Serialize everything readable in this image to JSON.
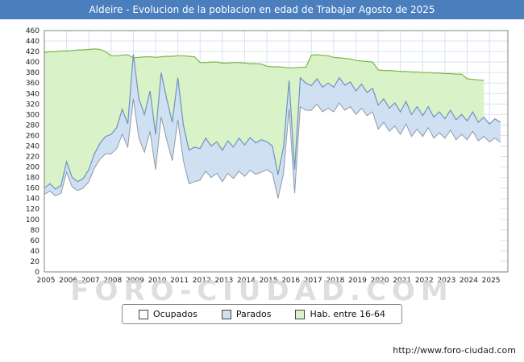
{
  "header": {
    "title": "Aldeire - Evolucion de la poblacion en edad de Trabajar Agosto de 2025",
    "bg_color": "#4a7ebd"
  },
  "watermark": "FORO-CIUDAD.COM",
  "footer": {
    "url": "http://www.foro-ciudad.com"
  },
  "legend": [
    {
      "label": "Ocupados",
      "color": "#ffffff"
    },
    {
      "label": "Parados",
      "color": "#cfe0f2"
    },
    {
      "label": "Hab. entre 16-64",
      "color": "#d9f2c8"
    }
  ],
  "chart_data": {
    "type": "area",
    "title": "Aldeire - Evolucion de la poblacion en edad de Trabajar Agosto de 2025",
    "xlabel": "",
    "ylabel": "",
    "ylim": [
      0,
      460
    ],
    "ytick_step": 20,
    "xlim": [
      2005,
      2025.83
    ],
    "xticks": [
      2005,
      2006,
      2007,
      2008,
      2009,
      2010,
      2011,
      2012,
      2013,
      2014,
      2015,
      2016,
      2017,
      2018,
      2019,
      2020,
      2021,
      2022,
      2023,
      2024,
      2025
    ],
    "grid": true,
    "legend_position": "bottom",
    "grid_color": "#d9e2f0",
    "border_color": "#808080",
    "x": [
      2005,
      2005.25,
      2005.5,
      2005.75,
      2006,
      2006.25,
      2006.5,
      2006.75,
      2007,
      2007.25,
      2007.5,
      2007.75,
      2008,
      2008.25,
      2008.5,
      2008.75,
      2009,
      2009.25,
      2009.5,
      2009.75,
      2010,
      2010.25,
      2010.5,
      2010.75,
      2011,
      2011.25,
      2011.5,
      2011.75,
      2012,
      2012.25,
      2012.5,
      2012.75,
      2013,
      2013.25,
      2013.5,
      2013.75,
      2014,
      2014.25,
      2014.5,
      2014.75,
      2015,
      2015.25,
      2015.5,
      2015.75,
      2016,
      2016.25,
      2016.5,
      2016.75,
      2017,
      2017.25,
      2017.5,
      2017.75,
      2018,
      2018.25,
      2018.5,
      2018.75,
      2019,
      2019.25,
      2019.5,
      2019.75,
      2020,
      2020.25,
      2020.5,
      2020.75,
      2021,
      2021.25,
      2021.5,
      2021.75,
      2022,
      2022.25,
      2022.5,
      2022.75,
      2023,
      2023.25,
      2023.5,
      2023.75,
      2024,
      2024.25,
      2024.5,
      2024.75,
      2025,
      2025.25,
      2025.5
    ],
    "series": [
      {
        "name": "Ocupados",
        "fill_color": "#ffffff",
        "line_color": "#8f9aa6",
        "values": [
          148,
          154,
          145,
          150,
          190,
          162,
          155,
          160,
          172,
          198,
          215,
          225,
          225,
          235,
          262,
          238,
          330,
          255,
          228,
          268,
          195,
          295,
          252,
          212,
          290,
          212,
          168,
          172,
          175,
          192,
          180,
          188,
          172,
          188,
          178,
          192,
          182,
          194,
          186,
          190,
          195,
          188,
          140,
          188,
          310,
          150,
          315,
          308,
          308,
          320,
          305,
          312,
          305,
          322,
          308,
          315,
          300,
          312,
          298,
          305,
          272,
          285,
          268,
          278,
          262,
          282,
          258,
          272,
          258,
          275,
          255,
          265,
          255,
          270,
          252,
          262,
          252,
          268,
          250,
          258,
          248,
          255,
          247
        ]
      },
      {
        "name": "Parados",
        "fill_color": "#cfe0f2",
        "line_color": "#6f94bd",
        "stacked_on": "Ocupados",
        "values": [
          12,
          14,
          13,
          15,
          20,
          18,
          17,
          18,
          23,
          27,
          30,
          33,
          37,
          40,
          48,
          44,
          85,
          75,
          72,
          77,
          67,
          85,
          78,
          73,
          80,
          68,
          64,
          66,
          60,
          63,
          60,
          60,
          60,
          62,
          60,
          63,
          60,
          62,
          60,
          62,
          53,
          52,
          45,
          50,
          55,
          45,
          55,
          52,
          47,
          48,
          47,
          48,
          47,
          48,
          48,
          47,
          45,
          46,
          44,
          45,
          46,
          45,
          44,
          44,
          43,
          43,
          42,
          43,
          40,
          40,
          40,
          40,
          37,
          38,
          38,
          38,
          36,
          37,
          35,
          37,
          34,
          37,
          38
        ]
      },
      {
        "name": "Hab. entre 16-64",
        "fill_color": "#d9f2c8",
        "line_color": "#7ab648",
        "values": [
          418,
          420,
          420,
          421,
          421,
          422,
          423,
          423,
          424,
          425,
          424,
          420,
          412,
          412,
          413,
          414,
          408,
          409,
          410,
          410,
          409,
          410,
          411,
          411,
          412,
          412,
          411,
          410,
          399,
          399,
          400,
          400,
          398,
          398,
          399,
          399,
          398,
          397,
          397,
          396,
          392,
          391,
          391,
          390,
          389,
          389,
          390,
          390,
          413,
          414,
          413,
          412,
          409,
          408,
          407,
          406,
          403,
          402,
          401,
          400,
          385,
          384,
          384,
          383,
          382,
          382,
          381,
          381,
          380,
          380,
          379,
          379,
          378,
          378,
          377,
          377,
          368,
          367,
          366,
          365,
          null,
          null,
          null
        ]
      }
    ]
  }
}
